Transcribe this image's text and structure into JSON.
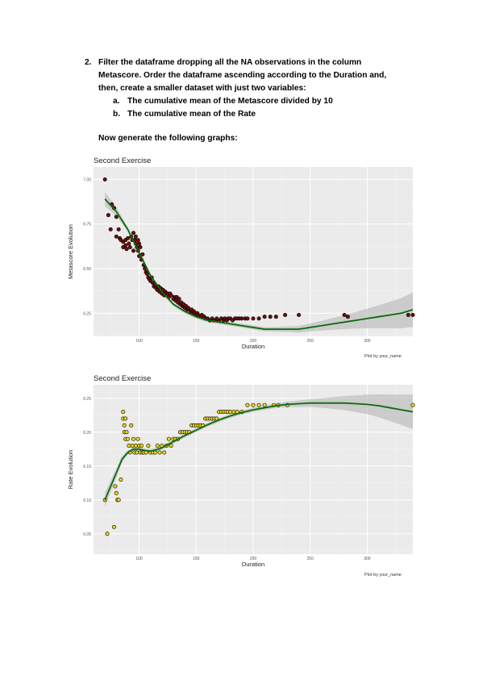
{
  "exercise": {
    "number": "2.",
    "line1": "Filter the dataframe dropping all the NA observations in the column",
    "line2": "Metascore. Order the dataframe ascending according to the Duration and,",
    "line3": "then, create a smaller dataset with just two variables:",
    "items": [
      {
        "marker": "a.",
        "text": "The cumulative mean of the Metascore divided by 10"
      },
      {
        "marker": "b.",
        "text": "The cumulative mean of the Rate"
      }
    ],
    "instruction": "Now generate the following graphs:"
  },
  "chart_data": [
    {
      "type": "scatter",
      "title": "Second Exercise",
      "xlabel": "Duration",
      "ylabel": "Metascore Evolution",
      "caption": "Plot by your_name",
      "xlim": [
        60,
        340
      ],
      "ylim": [
        6.12,
        7.07
      ],
      "x_ticks": [
        100,
        150,
        200,
        250,
        300
      ],
      "y_ticks": [
        6.25,
        6.5,
        6.75,
        7.0
      ],
      "y_tick_labels": [
        "6.25",
        "6.50",
        "6.75",
        "7.00"
      ],
      "grid": true,
      "point_color": "#6b0f0f",
      "smooth_color": "#0a6b0a",
      "points": [
        [
          70,
          7.0
        ],
        [
          73,
          6.8
        ],
        [
          75,
          6.72
        ],
        [
          76,
          6.86
        ],
        [
          78,
          6.84
        ],
        [
          80,
          6.68
        ],
        [
          80,
          6.79
        ],
        [
          82,
          6.72
        ],
        [
          83,
          6.67
        ],
        [
          84,
          6.66
        ],
        [
          86,
          6.65
        ],
        [
          86,
          6.62
        ],
        [
          88,
          6.66
        ],
        [
          88,
          6.63
        ],
        [
          89,
          6.61
        ],
        [
          90,
          6.67
        ],
        [
          91,
          6.64
        ],
        [
          92,
          6.62
        ],
        [
          93,
          6.68
        ],
        [
          94,
          6.66
        ],
        [
          95,
          6.6
        ],
        [
          95,
          6.7
        ],
        [
          96,
          6.66
        ],
        [
          97,
          6.64
        ],
        [
          97,
          6.68
        ],
        [
          98,
          6.62
        ],
        [
          99,
          6.66
        ],
        [
          99,
          6.6
        ],
        [
          100,
          6.64
        ],
        [
          100,
          6.57
        ],
        [
          101,
          6.62
        ],
        [
          102,
          6.55
        ],
        [
          103,
          6.58
        ],
        [
          104,
          6.52
        ],
        [
          105,
          6.5
        ],
        [
          106,
          6.48
        ],
        [
          107,
          6.47
        ],
        [
          108,
          6.45
        ],
        [
          109,
          6.44
        ],
        [
          110,
          6.43
        ],
        [
          111,
          6.45
        ],
        [
          112,
          6.42
        ],
        [
          113,
          6.4
        ],
        [
          114,
          6.41
        ],
        [
          115,
          6.39
        ],
        [
          116,
          6.38
        ],
        [
          117,
          6.4
        ],
        [
          118,
          6.37
        ],
        [
          119,
          6.39
        ],
        [
          120,
          6.36
        ],
        [
          121,
          6.38
        ],
        [
          122,
          6.35
        ],
        [
          123,
          6.37
        ],
        [
          124,
          6.36
        ],
        [
          125,
          6.36
        ],
        [
          126,
          6.34
        ],
        [
          127,
          6.36
        ],
        [
          128,
          6.35
        ],
        [
          130,
          6.33
        ],
        [
          131,
          6.34
        ],
        [
          132,
          6.32
        ],
        [
          133,
          6.34
        ],
        [
          134,
          6.31
        ],
        [
          135,
          6.33
        ],
        [
          136,
          6.3
        ],
        [
          137,
          6.31
        ],
        [
          138,
          6.29
        ],
        [
          139,
          6.3
        ],
        [
          140,
          6.28
        ],
        [
          141,
          6.29
        ],
        [
          142,
          6.27
        ],
        [
          143,
          6.28
        ],
        [
          144,
          6.27
        ],
        [
          145,
          6.26
        ],
        [
          146,
          6.27
        ],
        [
          147,
          6.25
        ],
        [
          148,
          6.26
        ],
        [
          149,
          6.25
        ],
        [
          150,
          6.24
        ],
        [
          151,
          6.25
        ],
        [
          152,
          6.24
        ],
        [
          154,
          6.23
        ],
        [
          155,
          6.24
        ],
        [
          157,
          6.23
        ],
        [
          158,
          6.22
        ],
        [
          160,
          6.22
        ],
        [
          162,
          6.21
        ],
        [
          164,
          6.22
        ],
        [
          165,
          6.21
        ],
        [
          167,
          6.21
        ],
        [
          168,
          6.22
        ],
        [
          170,
          6.21
        ],
        [
          172,
          6.22
        ],
        [
          174,
          6.21
        ],
        [
          175,
          6.22
        ],
        [
          177,
          6.21
        ],
        [
          178,
          6.22
        ],
        [
          180,
          6.22
        ],
        [
          182,
          6.21
        ],
        [
          184,
          6.22
        ],
        [
          186,
          6.22
        ],
        [
          188,
          6.22
        ],
        [
          190,
          6.22
        ],
        [
          193,
          6.22
        ],
        [
          195,
          6.22
        ],
        [
          200,
          6.22
        ],
        [
          205,
          6.22
        ],
        [
          210,
          6.23
        ],
        [
          215,
          6.23
        ],
        [
          220,
          6.23
        ],
        [
          228,
          6.24
        ],
        [
          240,
          6.24
        ],
        [
          280,
          6.24
        ],
        [
          283,
          6.23
        ],
        [
          336,
          6.24
        ],
        [
          340,
          6.24
        ]
      ],
      "smooth": [
        [
          70,
          6.89
        ],
        [
          80,
          6.82
        ],
        [
          90,
          6.72
        ],
        [
          100,
          6.59
        ],
        [
          110,
          6.46
        ],
        [
          120,
          6.37
        ],
        [
          130,
          6.3
        ],
        [
          140,
          6.26
        ],
        [
          150,
          6.23
        ],
        [
          160,
          6.21
        ],
        [
          170,
          6.2
        ],
        [
          180,
          6.19
        ],
        [
          190,
          6.18
        ],
        [
          200,
          6.17
        ],
        [
          210,
          6.16
        ],
        [
          220,
          6.16
        ],
        [
          230,
          6.16
        ],
        [
          240,
          6.16
        ],
        [
          250,
          6.17
        ],
        [
          260,
          6.18
        ],
        [
          270,
          6.19
        ],
        [
          280,
          6.2
        ],
        [
          290,
          6.21
        ],
        [
          300,
          6.22
        ],
        [
          310,
          6.23
        ],
        [
          320,
          6.24
        ],
        [
          330,
          6.25
        ],
        [
          340,
          6.27
        ]
      ]
    },
    {
      "type": "scatter",
      "title": "Second Exercise",
      "xlabel": "Duration",
      "ylabel": "Rate Evolution",
      "caption": "Plot by your_name",
      "xlim": [
        60,
        340
      ],
      "ylim": [
        6.02,
        6.27
      ],
      "x_ticks": [
        100,
        150,
        200,
        250,
        300
      ],
      "y_ticks": [
        6.05,
        6.1,
        6.15,
        6.2,
        6.25
      ],
      "y_tick_labels": [
        "6.05",
        "6.10",
        "6.15",
        "6.20",
        "6.25"
      ],
      "grid": true,
      "point_color": "#e6d41a",
      "smooth_color": "#0a6b0a",
      "points": [
        [
          70,
          6.1
        ],
        [
          72,
          6.05
        ],
        [
          78,
          6.06
        ],
        [
          79,
          6.12
        ],
        [
          80,
          6.11
        ],
        [
          81,
          6.1
        ],
        [
          82,
          6.1
        ],
        [
          84,
          6.13
        ],
        [
          86,
          6.23
        ],
        [
          86,
          6.22
        ],
        [
          87,
          6.21
        ],
        [
          87,
          6.2
        ],
        [
          88,
          6.19
        ],
        [
          88,
          6.22
        ],
        [
          89,
          6.2
        ],
        [
          90,
          6.19
        ],
        [
          91,
          6.18
        ],
        [
          92,
          6.17
        ],
        [
          93,
          6.21
        ],
        [
          94,
          6.18
        ],
        [
          95,
          6.19
        ],
        [
          96,
          6.17
        ],
        [
          97,
          6.18
        ],
        [
          98,
          6.17
        ],
        [
          99,
          6.19
        ],
        [
          100,
          6.18
        ],
        [
          101,
          6.17
        ],
        [
          102,
          6.18
        ],
        [
          103,
          6.17
        ],
        [
          104,
          6.17
        ],
        [
          106,
          6.17
        ],
        [
          108,
          6.18
        ],
        [
          110,
          6.17
        ],
        [
          112,
          6.17
        ],
        [
          114,
          6.17
        ],
        [
          116,
          6.18
        ],
        [
          118,
          6.17
        ],
        [
          120,
          6.18
        ],
        [
          122,
          6.17
        ],
        [
          124,
          6.18
        ],
        [
          126,
          6.19
        ],
        [
          128,
          6.18
        ],
        [
          130,
          6.19
        ],
        [
          132,
          6.19
        ],
        [
          134,
          6.19
        ],
        [
          136,
          6.2
        ],
        [
          138,
          6.2
        ],
        [
          140,
          6.2
        ],
        [
          142,
          6.2
        ],
        [
          144,
          6.2
        ],
        [
          146,
          6.21
        ],
        [
          148,
          6.21
        ],
        [
          150,
          6.21
        ],
        [
          152,
          6.21
        ],
        [
          154,
          6.21
        ],
        [
          156,
          6.21
        ],
        [
          158,
          6.22
        ],
        [
          160,
          6.22
        ],
        [
          162,
          6.22
        ],
        [
          164,
          6.22
        ],
        [
          166,
          6.22
        ],
        [
          168,
          6.22
        ],
        [
          170,
          6.23
        ],
        [
          172,
          6.23
        ],
        [
          174,
          6.23
        ],
        [
          176,
          6.23
        ],
        [
          178,
          6.23
        ],
        [
          180,
          6.23
        ],
        [
          183,
          6.23
        ],
        [
          186,
          6.23
        ],
        [
          190,
          6.23
        ],
        [
          195,
          6.24
        ],
        [
          200,
          6.24
        ],
        [
          205,
          6.24
        ],
        [
          210,
          6.24
        ],
        [
          218,
          6.24
        ],
        [
          222,
          6.24
        ],
        [
          230,
          6.24
        ],
        [
          340,
          6.24
        ]
      ],
      "smooth": [
        [
          70,
          6.1
        ],
        [
          75,
          6.12
        ],
        [
          80,
          6.14
        ],
        [
          85,
          6.16
        ],
        [
          90,
          6.17
        ],
        [
          95,
          6.175
        ],
        [
          100,
          6.175
        ],
        [
          105,
          6.173
        ],
        [
          110,
          6.172
        ],
        [
          115,
          6.174
        ],
        [
          120,
          6.177
        ],
        [
          130,
          6.186
        ],
        [
          140,
          6.195
        ],
        [
          150,
          6.203
        ],
        [
          160,
          6.211
        ],
        [
          170,
          6.218
        ],
        [
          180,
          6.224
        ],
        [
          190,
          6.229
        ],
        [
          200,
          6.233
        ],
        [
          210,
          6.236
        ],
        [
          220,
          6.239
        ],
        [
          230,
          6.241
        ],
        [
          240,
          6.242
        ],
        [
          250,
          6.243
        ],
        [
          260,
          6.243
        ],
        [
          270,
          6.243
        ],
        [
          280,
          6.243
        ],
        [
          290,
          6.242
        ],
        [
          300,
          6.241
        ],
        [
          310,
          6.239
        ],
        [
          320,
          6.236
        ],
        [
          330,
          6.233
        ],
        [
          340,
          6.23
        ]
      ]
    }
  ]
}
